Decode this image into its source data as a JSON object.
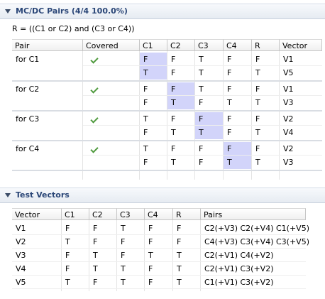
{
  "mcdc": {
    "title": "MC/DC Pairs (4/4 100.0%)",
    "formula": "R = ((C1 or C2) and (C3 or C4))",
    "columns": [
      "Pair",
      "Covered",
      "C1",
      "C2",
      "C3",
      "C4",
      "R",
      "Vector"
    ],
    "groups": [
      {
        "pair": "for C1",
        "covered": true,
        "highlight_col": "C1",
        "rows": [
          {
            "C1": "F",
            "C2": "F",
            "C3": "T",
            "C4": "F",
            "R": "F",
            "Vector": "V1"
          },
          {
            "C1": "T",
            "C2": "F",
            "C3": "T",
            "C4": "F",
            "R": "T",
            "Vector": "V5"
          }
        ]
      },
      {
        "pair": "for C2",
        "covered": true,
        "highlight_col": "C2",
        "rows": [
          {
            "C1": "F",
            "C2": "F",
            "C3": "T",
            "C4": "F",
            "R": "F",
            "Vector": "V1"
          },
          {
            "C1": "F",
            "C2": "T",
            "C3": "F",
            "C4": "T",
            "R": "T",
            "Vector": "V3"
          }
        ]
      },
      {
        "pair": "for C3",
        "covered": true,
        "highlight_col": "C3",
        "rows": [
          {
            "C1": "T",
            "C2": "F",
            "C3": "F",
            "C4": "F",
            "R": "F",
            "Vector": "V2"
          },
          {
            "C1": "F",
            "C2": "T",
            "C3": "T",
            "C4": "F",
            "R": "T",
            "Vector": "V4"
          }
        ]
      },
      {
        "pair": "for C4",
        "covered": true,
        "highlight_col": "C4",
        "rows": [
          {
            "C1": "T",
            "C2": "F",
            "C3": "F",
            "C4": "F",
            "R": "F",
            "Vector": "V2"
          },
          {
            "C1": "F",
            "C2": "T",
            "C3": "F",
            "C4": "T",
            "R": "T",
            "Vector": "V3"
          }
        ]
      }
    ]
  },
  "vectors": {
    "title": "Test Vectors",
    "columns": [
      "Vector",
      "C1",
      "C2",
      "C3",
      "C4",
      "R",
      "Pairs"
    ],
    "rows": [
      [
        "V1",
        "F",
        "F",
        "T",
        "F",
        "F",
        "C2(+V3) C2(+V4) C1(+V5)"
      ],
      [
        "V2",
        "T",
        "F",
        "F",
        "F",
        "F",
        "C4(+V3) C3(+V4) C3(+V5)"
      ],
      [
        "V3",
        "F",
        "T",
        "F",
        "T",
        "T",
        "C2(+V1) C4(+V2)"
      ],
      [
        "V4",
        "F",
        "T",
        "T",
        "F",
        "T",
        "C2(+V1) C3(+V2)"
      ],
      [
        "V5",
        "T",
        "F",
        "T",
        "F",
        "T",
        "C1(+V1) C3(+V2)"
      ]
    ]
  },
  "colors": {
    "highlight": "#d2d4fa",
    "check": "#4f9a3e",
    "header_text": "#2a4677"
  },
  "icons": [
    "collapse-triangle-icon",
    "check-mark-icon"
  ]
}
